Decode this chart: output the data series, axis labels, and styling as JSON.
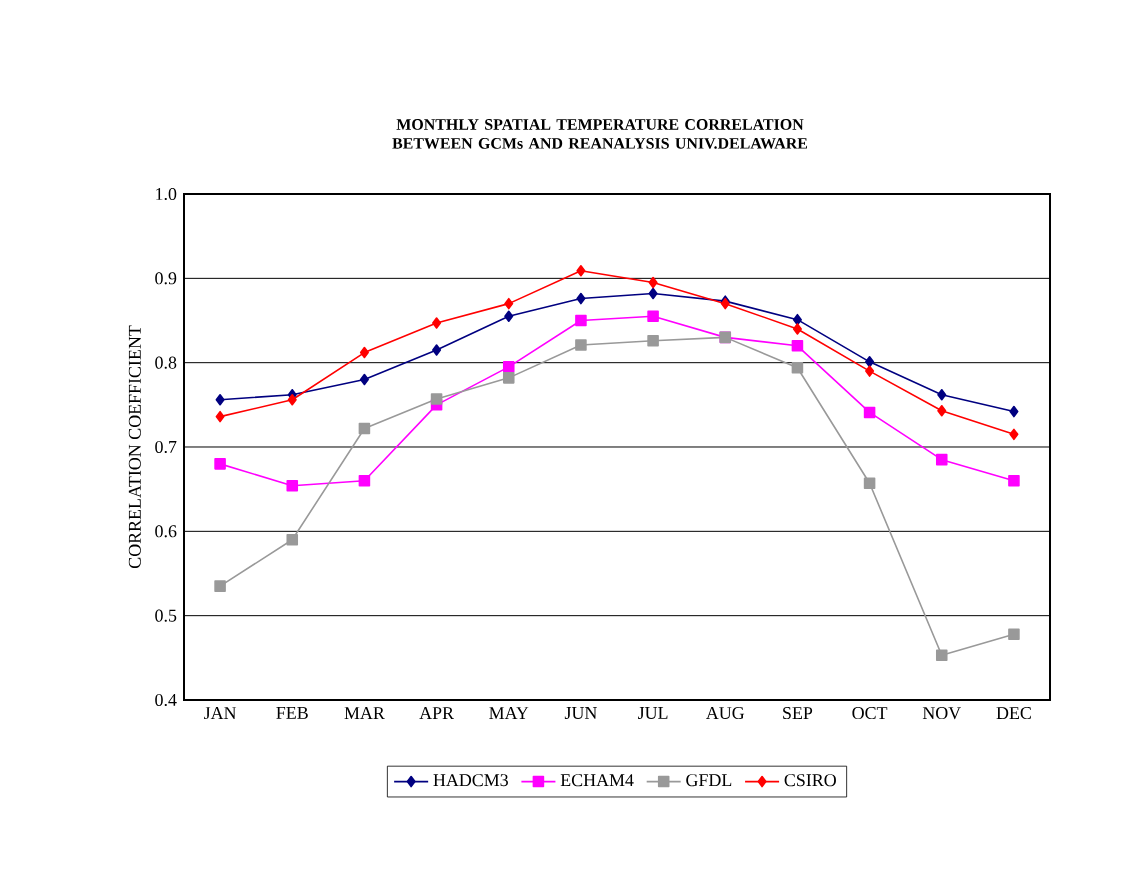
{
  "chart_data": {
    "type": "line",
    "title": "MONTHLY SPATIAL TEMPERATURE CORRELATION BETWEEN GCMs AND REANALYSIS UNIV.DELAWARE",
    "ylabel": "CORRELATION COEFFICIENT",
    "categories": [
      "JAN",
      "FEB",
      "MAR",
      "APR",
      "MAY",
      "JUN",
      "JUL",
      "AUG",
      "SEP",
      "OCT",
      "NOV",
      "DEC"
    ],
    "ylim": [
      0.4,
      1.0
    ],
    "yticks": [
      {
        "value": 0.4,
        "label": "0.4"
      },
      {
        "value": 0.5,
        "label": "0.5"
      },
      {
        "value": 0.6,
        "label": "0.6"
      },
      {
        "value": 0.7,
        "label": "0.7"
      },
      {
        "value": 0.8,
        "label": "0.8"
      },
      {
        "value": 0.9,
        "label": "0.9"
      },
      {
        "value": 1.0,
        "label": "1.0"
      }
    ],
    "grid": "y",
    "legend": "bottom",
    "line_style": "solid",
    "series": [
      {
        "name": "HADCM3",
        "color": "#000080",
        "marker": "diamond",
        "values": [
          0.756,
          0.762,
          0.78,
          0.815,
          0.855,
          0.876,
          0.882,
          0.873,
          0.851,
          0.801,
          0.762,
          0.742
        ]
      },
      {
        "name": "ECHAM4",
        "color": "#ff00ff",
        "marker": "square",
        "values": [
          0.68,
          0.654,
          0.66,
          0.75,
          0.795,
          0.85,
          0.855,
          0.83,
          0.82,
          0.741,
          0.685,
          0.66
        ]
      },
      {
        "name": "GFDL",
        "color": "#999999",
        "marker": "square",
        "values": [
          0.535,
          0.59,
          0.722,
          0.757,
          0.782,
          0.821,
          0.826,
          0.83,
          0.794,
          0.657,
          0.453,
          0.478
        ]
      },
      {
        "name": "CSIRO",
        "color": "#ff0000",
        "marker": "diamond",
        "values": [
          0.736,
          0.756,
          0.812,
          0.847,
          0.87,
          0.909,
          0.895,
          0.87,
          0.84,
          0.79,
          0.743,
          0.715
        ]
      }
    ]
  }
}
